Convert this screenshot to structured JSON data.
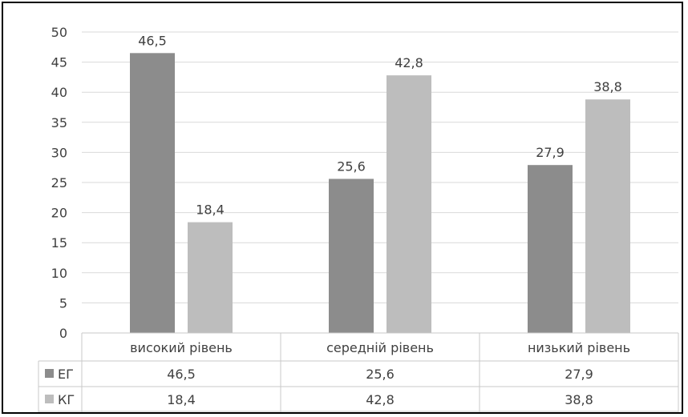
{
  "chart_data": {
    "type": "bar",
    "categories": [
      "високий рівень",
      "середній рівень",
      "низький рівень"
    ],
    "series": [
      {
        "name": "ЕГ",
        "values": [
          46.5,
          25.6,
          27.9
        ],
        "labels": [
          "46,5",
          "25,6",
          "27,9"
        ],
        "color": "#8c8c8c"
      },
      {
        "name": "КГ",
        "values": [
          18.4,
          42.8,
          38.8
        ],
        "labels": [
          "18,4",
          "42,8",
          "38,8"
        ],
        "color": "#bdbdbd"
      }
    ],
    "ylim": [
      0,
      50
    ],
    "yticks": [
      0,
      5,
      10,
      15,
      20,
      25,
      30,
      35,
      40,
      45,
      50
    ],
    "grid": true,
    "data_table": true,
    "title": "",
    "xlabel": "",
    "ylabel": ""
  }
}
